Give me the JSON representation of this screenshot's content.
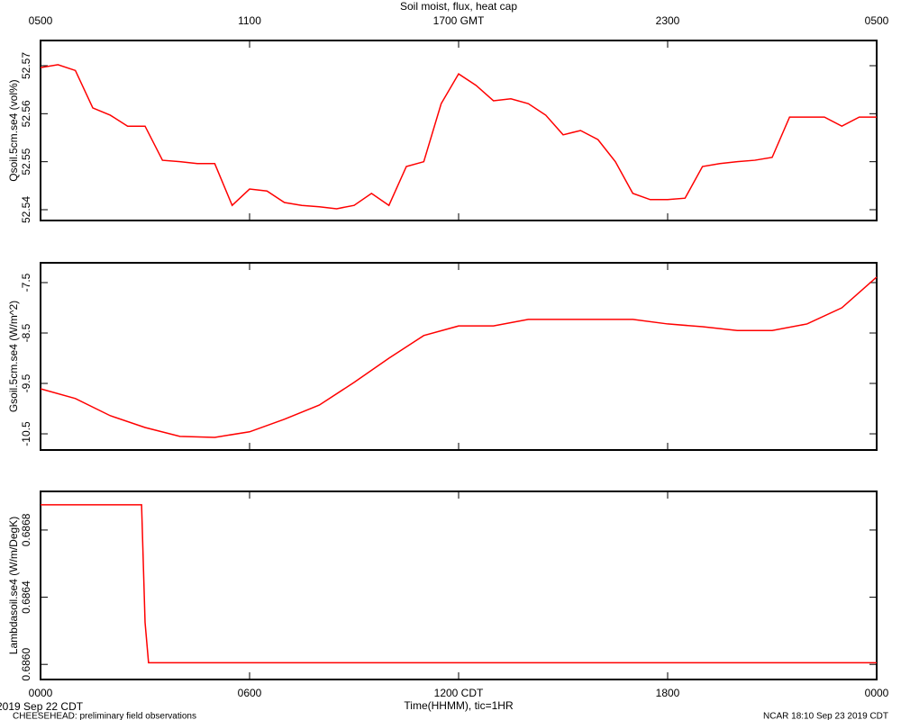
{
  "chart_data": [
    {
      "type": "line",
      "title": "Soil moist, flux, heat cap",
      "ylabel": "Qsoil.5cm.se4 (vol%)",
      "color": "#ff0000",
      "xlim": [
        0,
        24
      ],
      "x2ticks": [
        {
          "value": 0,
          "label": "0500"
        },
        {
          "value": 6,
          "label": "1100"
        },
        {
          "value": 12,
          "label": "1700 GMT"
        },
        {
          "value": 18,
          "label": "2300"
        },
        {
          "value": 24,
          "label": "0500"
        }
      ],
      "ylim": [
        52.53775,
        52.57525
      ],
      "yticks": [
        52.54,
        52.55,
        52.56,
        52.57
      ],
      "x": [
        0,
        0.5,
        1,
        1.5,
        2,
        2.5,
        3,
        3.5,
        4,
        4.5,
        5,
        5.5,
        6,
        6.5,
        7,
        7.5,
        8,
        8.5,
        9,
        9.5,
        10,
        10.5,
        11,
        11.5,
        12,
        12.5,
        13,
        13.5,
        14,
        14.5,
        15,
        15.5,
        16,
        16.5,
        17,
        17.5,
        18,
        18.5,
        19,
        19.5,
        20,
        20.5,
        21,
        21.5,
        22,
        22.5,
        23,
        23.5,
        24
      ],
      "values": [
        52.5696,
        52.5702,
        52.569,
        52.5612,
        52.5597,
        52.5574,
        52.5574,
        52.5503,
        52.55,
        52.5496,
        52.5496,
        52.5409,
        52.5443,
        52.5439,
        52.5415,
        52.5409,
        52.5406,
        52.5402,
        52.5409,
        52.5434,
        52.5409,
        52.549,
        52.55,
        52.5621,
        52.5683,
        52.5659,
        52.5627,
        52.5631,
        52.5621,
        52.5597,
        52.5556,
        52.5565,
        52.5546,
        52.55,
        52.5434,
        52.5421,
        52.5421,
        52.5424,
        52.549,
        52.5496,
        52.55,
        52.5503,
        52.5509,
        52.5593,
        52.5593,
        52.5593,
        52.5574,
        52.5593,
        52.5593
      ]
    },
    {
      "type": "line",
      "ylabel": "Gsoil.5cm.se4 (W/m^2)",
      "color": "#ff0000",
      "xlim": [
        0,
        24
      ],
      "ylim": [
        -10.821,
        -7.107
      ],
      "yticks": [
        -10.5,
        -9.5,
        -8.5,
        -7.5
      ],
      "x": [
        0,
        1,
        2,
        3,
        4,
        5,
        6,
        7,
        8,
        9,
        10,
        11,
        12,
        13,
        14,
        15,
        16,
        17,
        18,
        19,
        20,
        21,
        22,
        23,
        24
      ],
      "values": [
        -9.607,
        -9.8,
        -10.14,
        -10.375,
        -10.55,
        -10.57,
        -10.46,
        -10.21,
        -9.93,
        -9.48,
        -9.0,
        -8.55,
        -8.36,
        -8.36,
        -8.23,
        -8.23,
        -8.23,
        -8.23,
        -8.32,
        -8.375,
        -8.45,
        -8.45,
        -8.32,
        -8.0,
        -7.39
      ]
    },
    {
      "type": "line",
      "ylabel": "Lambdasoil.se4 (W/m/DegK)",
      "color": "#ff0000",
      "xlim": [
        0,
        24
      ],
      "xlabel": "Time(HHMM), tic=1HR",
      "xticks": [
        {
          "value": 0,
          "label": "0000"
        },
        {
          "value": 6,
          "label": "0600"
        },
        {
          "value": 12,
          "label": "1200 CDT"
        },
        {
          "value": 18,
          "label": "1800"
        },
        {
          "value": 24,
          "label": "0000"
        }
      ],
      "ylim": [
        0.68591,
        0.68703
      ],
      "yticks": [
        {
          "value": 0.686,
          "label": "0.6860"
        },
        0.6864,
        0.6868
      ],
      "x": [
        0,
        2.9,
        3.0,
        3.1,
        24
      ],
      "values": [
        0.68695,
        0.68695,
        0.68625,
        0.68601,
        0.68601
      ]
    }
  ],
  "footer": {
    "date": "2019 Sep 22 CDT",
    "source": "CHEESEHEAD: preliminary field observations",
    "stamp": "NCAR 18:10 Sep 23 2019 CDT"
  }
}
